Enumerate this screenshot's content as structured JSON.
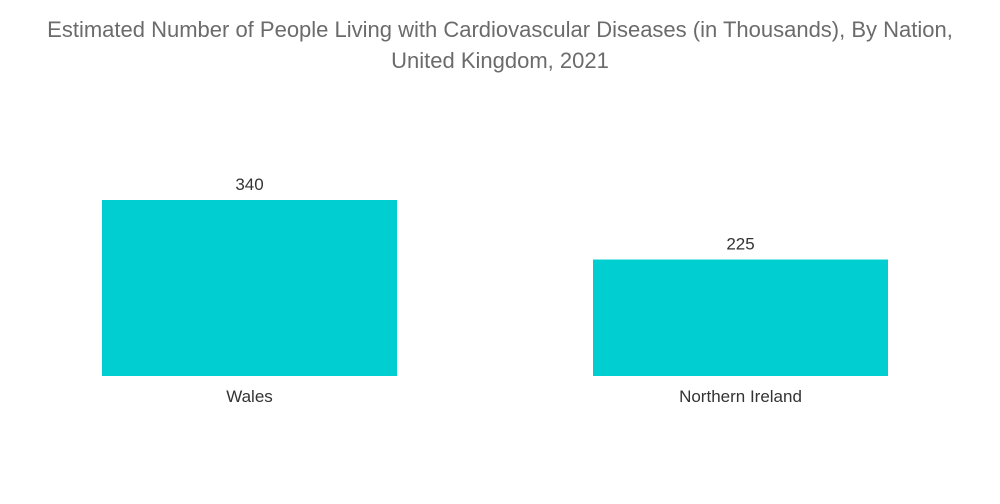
{
  "chart_data": {
    "type": "bar",
    "title_line1": "Estimated Number of People Living with Cardiovascular Diseases (in Thousands), By Nation,",
    "title_line2": "United Kingdom, 2021",
    "categories": [
      "Wales",
      "Northern Ireland"
    ],
    "values": [
      340,
      225
    ],
    "value_labels": [
      "340",
      "225"
    ],
    "xlabel": "",
    "ylabel": "",
    "ylim": [
      0,
      340
    ],
    "grid": false,
    "legend": "none",
    "bar_color": "#00CED1"
  }
}
